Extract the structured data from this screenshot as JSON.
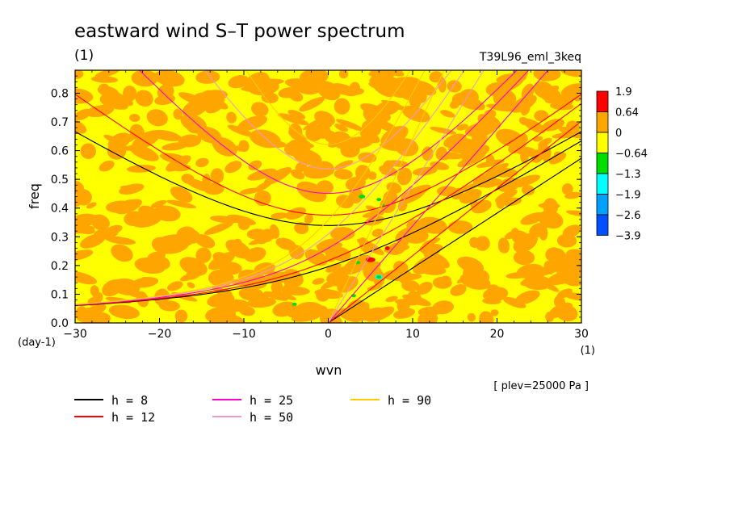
{
  "chart_data": {
    "type": "heatmap",
    "title": "eastward wind S–T power spectrum",
    "title_unit": "(1)",
    "run_label": "T39L96_eml_3keq",
    "xlabel": "wvn",
    "xunit": "(1)",
    "ylabel": "freq",
    "yunit": "(day-1)",
    "xlim": [
      -30,
      30
    ],
    "ylim": [
      0.0,
      0.88
    ],
    "x_ticks": [
      -30,
      -20,
      -10,
      0,
      10,
      20,
      30
    ],
    "x_tick_labels": [
      "−30",
      "−20",
      "−10",
      "0",
      "10",
      "20",
      "30"
    ],
    "y_ticks": [
      0.0,
      0.1,
      0.2,
      0.3,
      0.4,
      0.5,
      0.6,
      0.7,
      0.8
    ],
    "y_tick_labels": [
      "0.0",
      "0.1",
      "0.2",
      "0.3",
      "0.4",
      "0.5",
      "0.6",
      "0.7",
      "0.8"
    ],
    "colorbar": {
      "labels": [
        "1.9",
        "0.64",
        "0",
        "−0.64",
        "−1.3",
        "−1.9",
        "−2.6",
        "−3.9"
      ],
      "colors": [
        "#ff0000",
        "#ffa500",
        "#ffff00",
        "#00dd00",
        "#00ffff",
        "#00a0ff",
        "#0050ff"
      ]
    },
    "dispersion_curves": [
      {
        "label": "h =  8",
        "h": 8,
        "color": "#000000"
      },
      {
        "label": "h = 12",
        "h": 12,
        "color": "#ff0000"
      },
      {
        "label": "h = 25",
        "h": 25,
        "color": "#ff00cc"
      },
      {
        "label": "h = 50",
        "h": 50,
        "color": "#ee99cc"
      },
      {
        "label": "h = 90",
        "h": 90,
        "color": "#ffcc00"
      }
    ],
    "annotation": "[ plev=25000 Pa ]"
  }
}
